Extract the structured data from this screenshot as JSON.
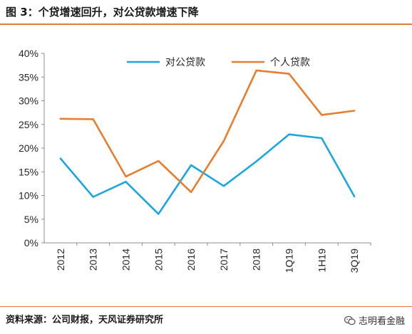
{
  "header": {
    "title": "图 3：个贷增速回升，对公贷款增速下降"
  },
  "footer": {
    "source": "资料来源：公司财报，天风证券研究所",
    "watermark": "志明看金融",
    "watermark_icon": "wechat-icon"
  },
  "chart_data": {
    "type": "line",
    "categories": [
      "2012",
      "2013",
      "2014",
      "2015",
      "2016",
      "2017",
      "2018",
      "1Q19",
      "1H19",
      "3Q19"
    ],
    "series": [
      {
        "name": "对公贷款",
        "color": "#1aa7e0",
        "values": [
          17.8,
          9.7,
          12.9,
          6.1,
          16.4,
          12.0,
          17.2,
          22.9,
          22.1,
          9.8
        ]
      },
      {
        "name": "个人贷款",
        "color": "#e77d2d",
        "values": [
          26.2,
          26.1,
          14.0,
          17.3,
          10.7,
          21.5,
          36.4,
          35.7,
          27.0,
          27.9
        ]
      }
    ],
    "y_ticks": [
      "0%",
      "5%",
      "10%",
      "15%",
      "20%",
      "25%",
      "30%",
      "35%",
      "40%"
    ],
    "ylim": [
      0,
      40
    ],
    "grid": false,
    "legend": "top"
  }
}
